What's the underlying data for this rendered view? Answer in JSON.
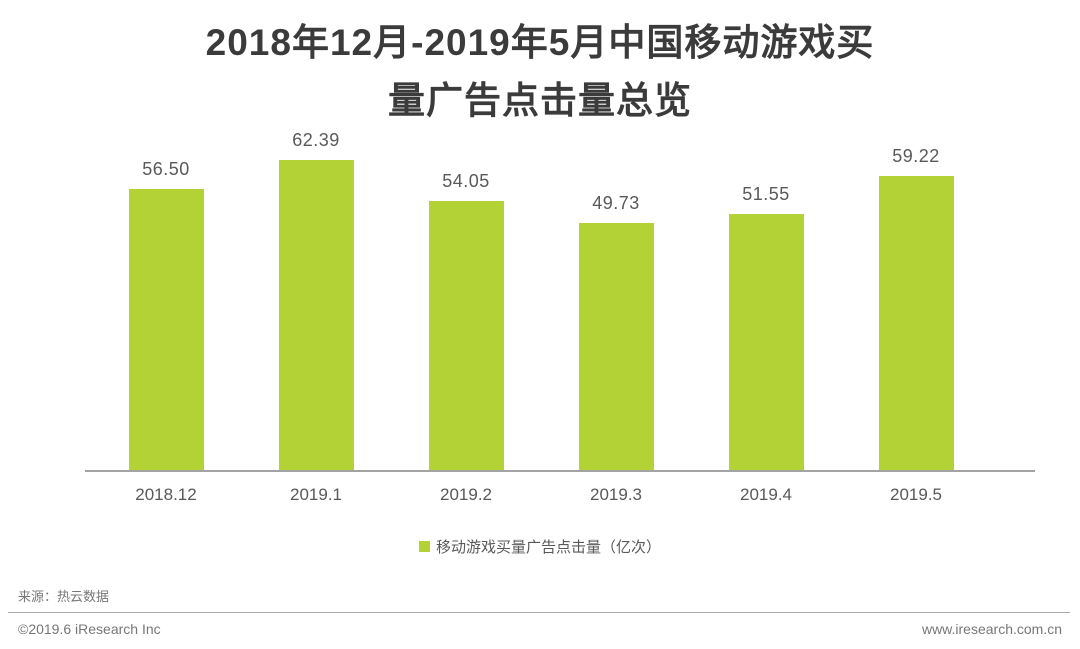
{
  "title": {
    "line1": "2018年12月-2019年5月中国移动游戏买",
    "line2": "量广告点击量总览"
  },
  "legend": {
    "label": "移动游戏买量广告点击量（亿次）",
    "marker_color": "#b2d235"
  },
  "footer": {
    "source": "来源：热云数据",
    "copyright": "©2019.6 iResearch Inc",
    "website": "www.iresearch.com.cn"
  },
  "colors": {
    "bar": "#b2d235",
    "title_text": "#3b3b3b",
    "label_text": "#595959",
    "axis_line": "#a3a3a3"
  },
  "chart_data": {
    "type": "bar",
    "title": "2018年12月-2019年5月中国移动游戏买量广告点击量总览",
    "categories": [
      "2018.12",
      "2019.1",
      "2019.2",
      "2019.3",
      "2019.4",
      "2019.5"
    ],
    "values": [
      56.5,
      62.39,
      54.05,
      49.73,
      51.55,
      59.22
    ],
    "value_labels": [
      "56.50",
      "62.39",
      "54.05",
      "49.73",
      "51.55",
      "59.22"
    ],
    "series_name": "移动游戏买量广告点击量（亿次）",
    "xlabel": "",
    "ylabel": "广告点击量（亿次）",
    "ylim": [
      0,
      70
    ],
    "grid": false,
    "legend_position": "bottom",
    "bar_color": "#b2d235"
  }
}
